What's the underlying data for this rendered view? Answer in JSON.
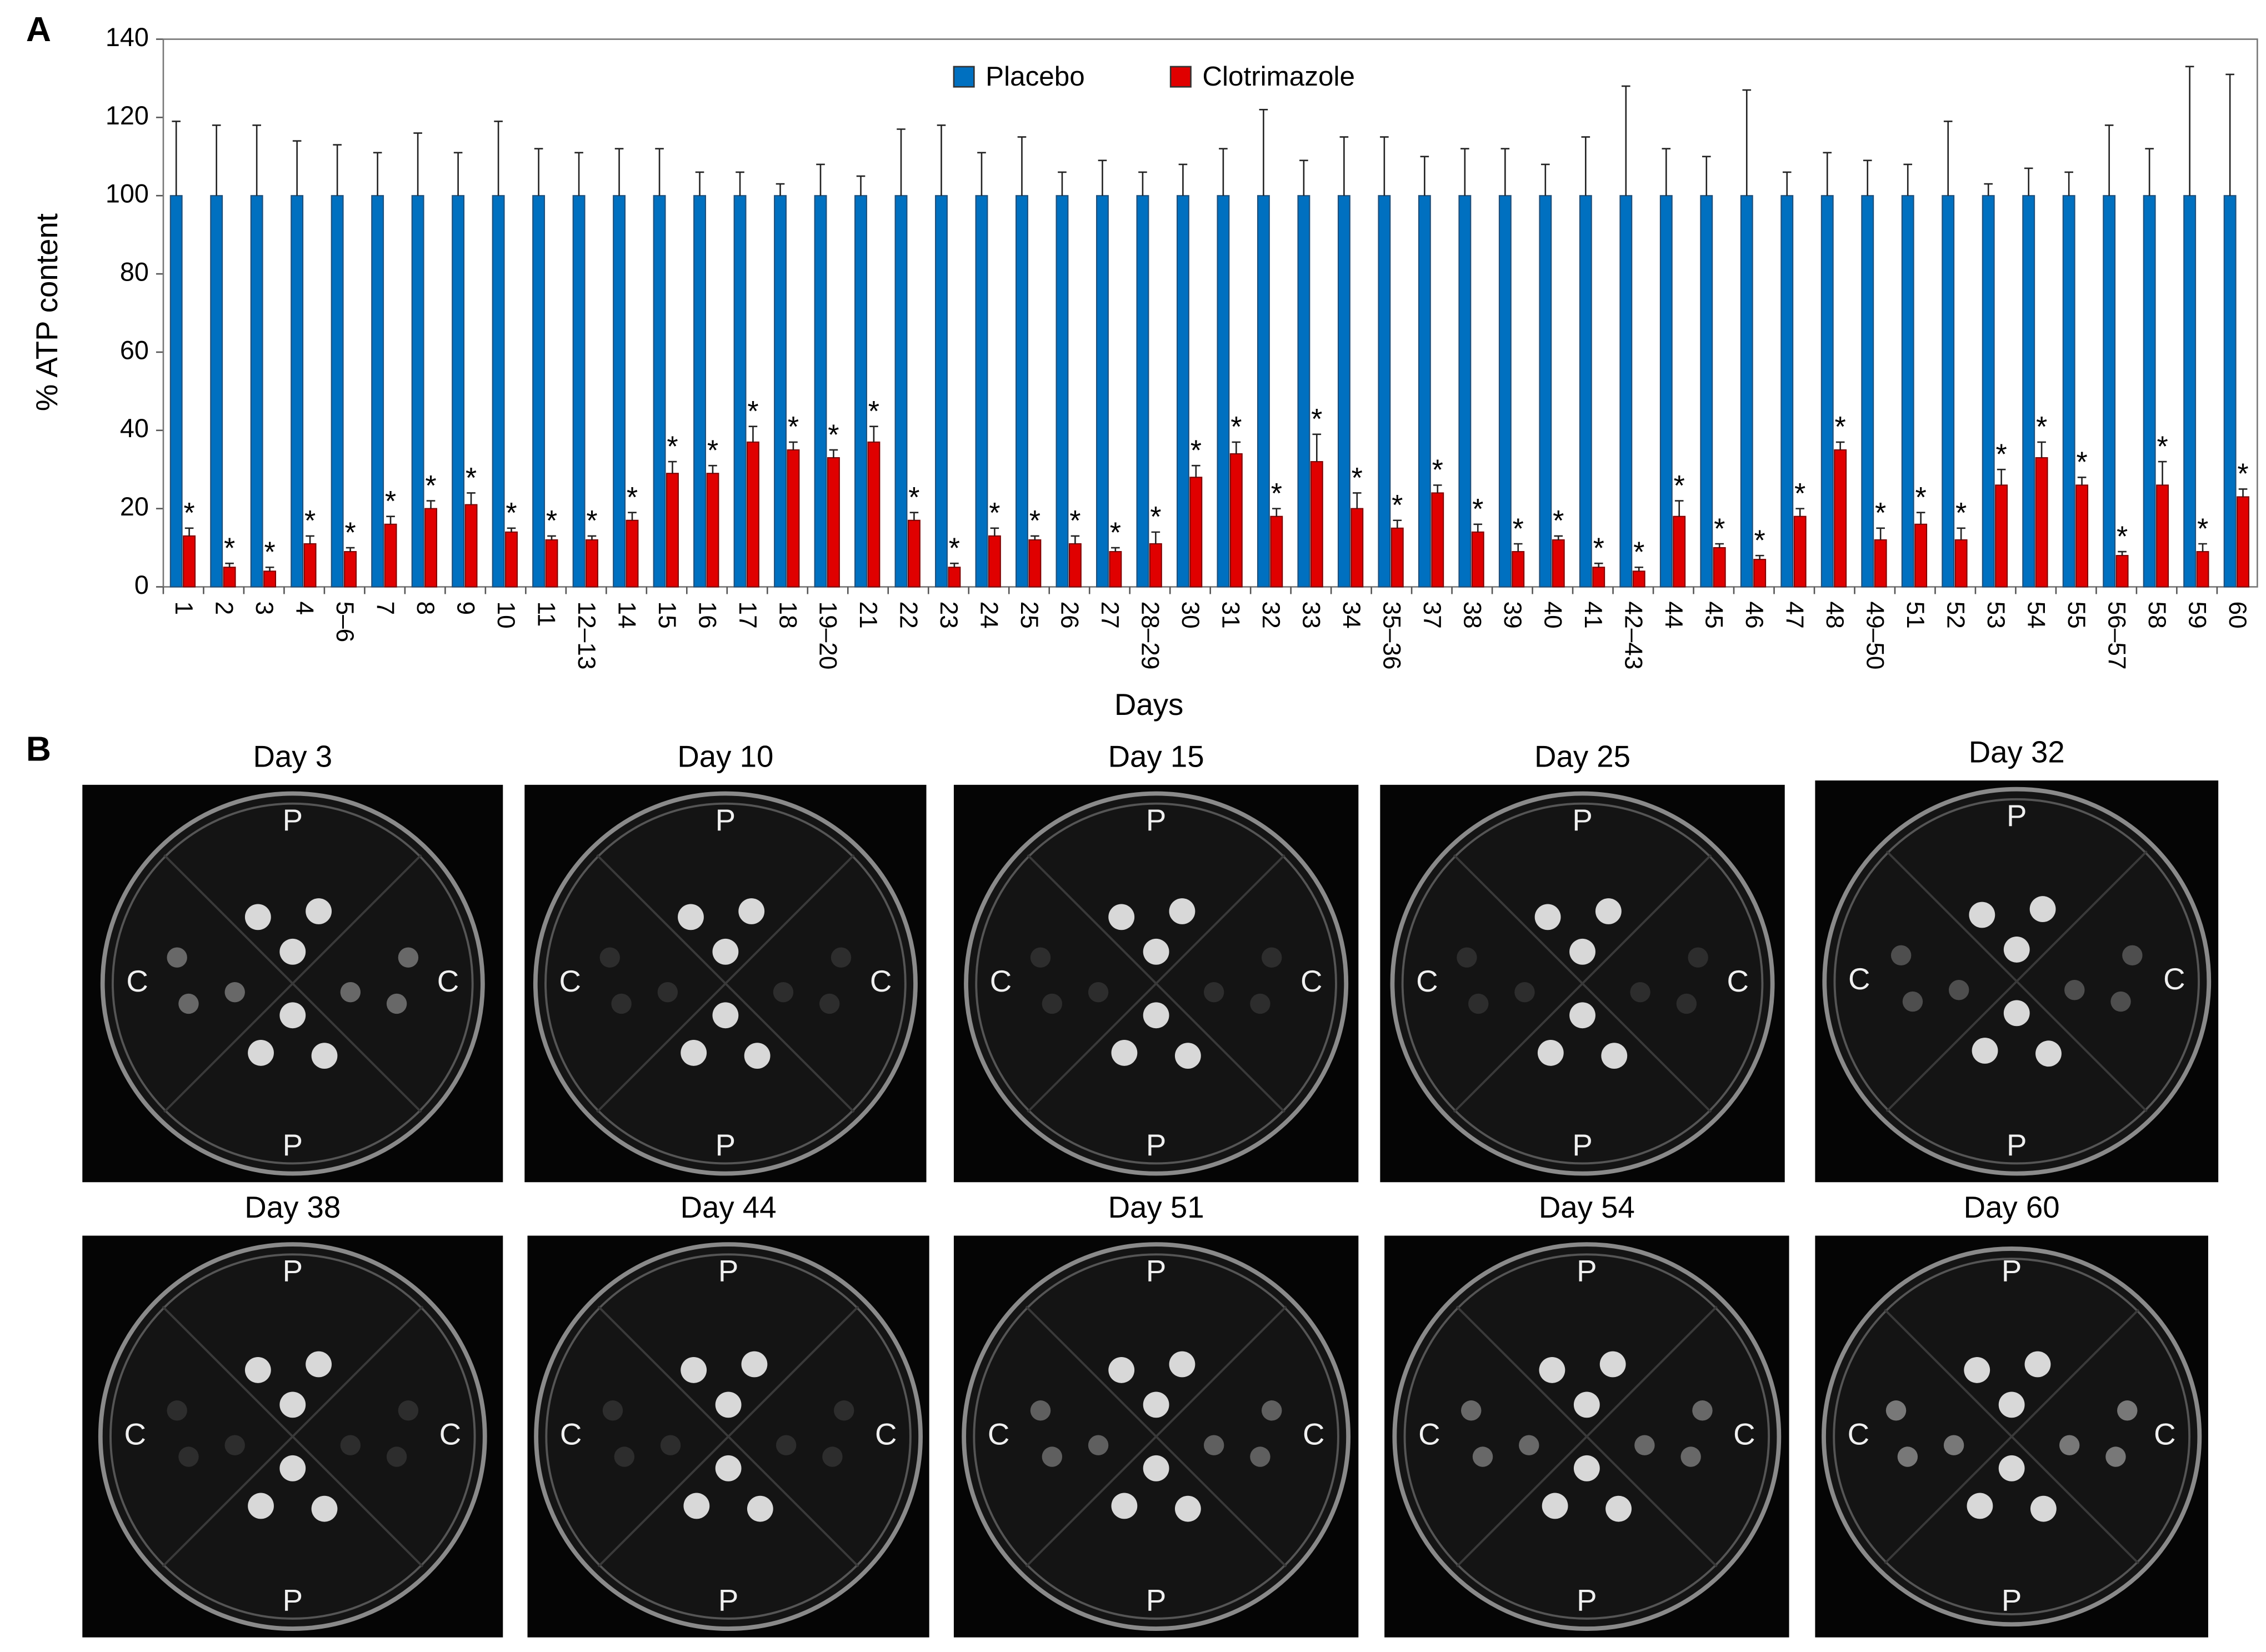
{
  "panel_labels": [
    "A",
    "B"
  ],
  "chart_data": {
    "type": "bar",
    "y_label": "% ATP content",
    "x_label": "Days",
    "categories": [
      "1",
      "2",
      "3",
      "4",
      "5–6",
      "7",
      "8",
      "9",
      "10",
      "11",
      "12–13",
      "14",
      "15",
      "16",
      "17",
      "18",
      "19–20",
      "21",
      "22",
      "23",
      "24",
      "25",
      "26",
      "27",
      "28–29",
      "30",
      "31",
      "32",
      "33",
      "34",
      "35–36",
      "37",
      "38",
      "39",
      "40",
      "41",
      "42–43",
      "44",
      "45",
      "46",
      "47",
      "48",
      "49–50",
      "51",
      "52",
      "53",
      "54",
      "55",
      "56–57",
      "58",
      "59",
      "60"
    ],
    "series": [
      {
        "name": "Placebo",
        "color": "#0070c0",
        "values": [
          100,
          100,
          100,
          100,
          100,
          100,
          100,
          100,
          100,
          100,
          100,
          100,
          100,
          100,
          100,
          100,
          100,
          100,
          100,
          100,
          100,
          100,
          100,
          100,
          100,
          100,
          100,
          100,
          100,
          100,
          100,
          100,
          100,
          100,
          100,
          100,
          100,
          100,
          100,
          100,
          100,
          100,
          100,
          100,
          100,
          100,
          100,
          100,
          100,
          100,
          100,
          100
        ],
        "errors": [
          19,
          18,
          18,
          14,
          13,
          11,
          16,
          11,
          19,
          12,
          11,
          12,
          12,
          6,
          6,
          3,
          8,
          5,
          17,
          18,
          11,
          15,
          6,
          9,
          6,
          8,
          12,
          22,
          9,
          15,
          15,
          10,
          12,
          12,
          8,
          15,
          28,
          12,
          10,
          27,
          6,
          11,
          9,
          8,
          19,
          3,
          7,
          6,
          18,
          12,
          33,
          31
        ]
      },
      {
        "name": "Clotrimazole",
        "color": "#e00000",
        "values": [
          13,
          5,
          4,
          11,
          9,
          16,
          20,
          21,
          14,
          12,
          12,
          17,
          29,
          29,
          37,
          35,
          33,
          37,
          17,
          5,
          13,
          12,
          11,
          9,
          11,
          28,
          34,
          18,
          32,
          20,
          15,
          24,
          14,
          9,
          12,
          5,
          4,
          18,
          10,
          7,
          18,
          35,
          12,
          16,
          12,
          26,
          33,
          26,
          8,
          26,
          9,
          23
        ],
        "errors": [
          2,
          1,
          1,
          2,
          1,
          2,
          2,
          3,
          1,
          1,
          1,
          2,
          3,
          2,
          4,
          2,
          2,
          4,
          2,
          1,
          2,
          1,
          2,
          1,
          3,
          3,
          3,
          2,
          7,
          4,
          2,
          2,
          2,
          2,
          1,
          1,
          1,
          4,
          1,
          1,
          2,
          2,
          3,
          3,
          3,
          4,
          4,
          2,
          1,
          6,
          2,
          2
        ],
        "significance_labels": [
          "*",
          "*",
          "*",
          "*",
          "*",
          "*",
          "*",
          "*",
          "*",
          "*",
          "*",
          "*",
          "*",
          "*",
          "*",
          "*",
          "*",
          "*",
          "*",
          "*",
          "*",
          "*",
          "*",
          "*",
          "*",
          "*",
          "*",
          "*",
          "*",
          "*",
          "*",
          "*",
          "*",
          "*",
          "*",
          "*",
          "*",
          "*",
          "*",
          "*",
          "*",
          "*",
          "*",
          "*",
          "*",
          "*",
          "*",
          "*",
          "*",
          "*",
          "*",
          "*"
        ]
      }
    ],
    "ylim": [
      0,
      140
    ],
    "yticks": [
      0,
      20,
      40,
      60,
      80,
      100,
      120,
      140
    ],
    "legend": "top"
  },
  "plates": [
    {
      "title": "Day 3",
      "top": "P",
      "bottom": "P",
      "left": "C",
      "right": "C"
    },
    {
      "title": "Day 10",
      "top": "P",
      "bottom": "P",
      "left": "C",
      "right": "C"
    },
    {
      "title": "Day 15",
      "top": "P",
      "bottom": "P",
      "left": "C",
      "right": "C"
    },
    {
      "title": "Day 25",
      "top": "P",
      "bottom": "P",
      "left": "C",
      "right": "C"
    },
    {
      "title": "Day 32",
      "top": "P",
      "bottom": "P",
      "left": "C",
      "right": "C"
    },
    {
      "title": "Day 38",
      "top": "P",
      "bottom": "P",
      "left": "C",
      "right": "C"
    },
    {
      "title": "Day 44",
      "top": "P",
      "bottom": "P",
      "left": "C",
      "right": "C"
    },
    {
      "title": "Day 51",
      "top": "P",
      "bottom": "P",
      "left": "C",
      "right": "C"
    },
    {
      "title": "Day 54",
      "top": "P",
      "bottom": "P",
      "left": "C",
      "right": "C"
    },
    {
      "title": "Day 60",
      "top": "P",
      "bottom": "P",
      "left": "C",
      "right": "C"
    }
  ]
}
